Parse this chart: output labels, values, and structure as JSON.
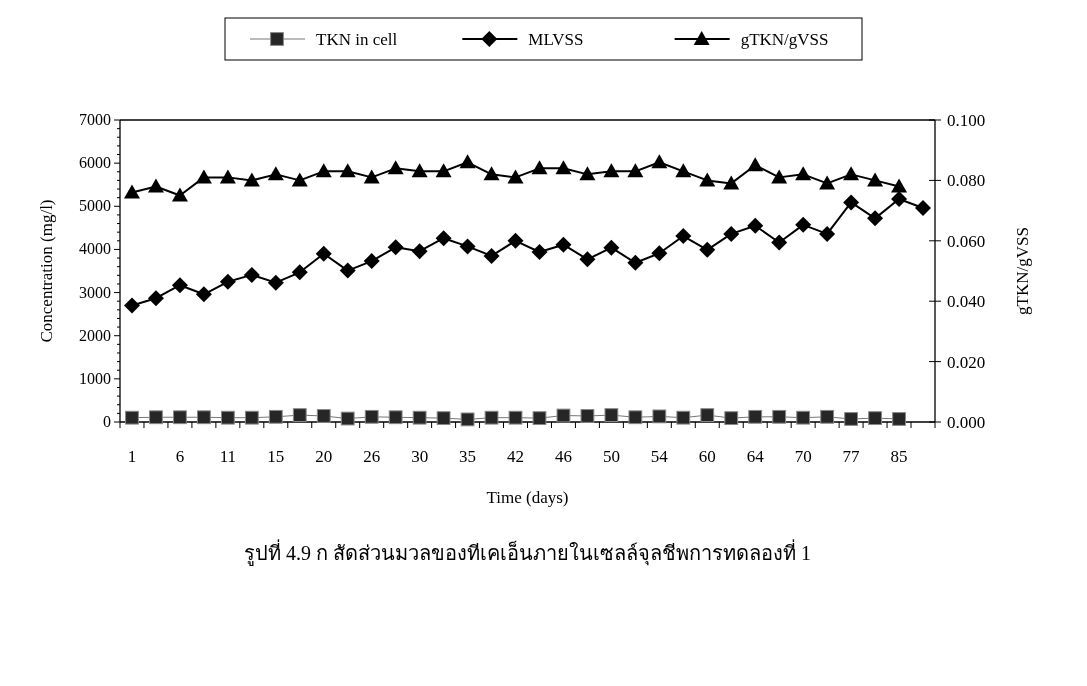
{
  "chart_data": {
    "type": "line",
    "xlabel": "Time (days)",
    "ylabel": "Concentration (mg/l)",
    "y2label": "gTKN/gVSS",
    "categories": [
      "1",
      null,
      "6",
      null,
      "11",
      null,
      "15",
      null,
      "20",
      null,
      "26",
      null,
      "30",
      null,
      "35",
      null,
      "42",
      null,
      "46",
      null,
      "50",
      null,
      "54",
      null,
      "60",
      null,
      "64",
      null,
      "70",
      null,
      "77",
      null,
      "85",
      null
    ],
    "ylim": [
      0,
      7000
    ],
    "yticks": [
      0,
      1000,
      2000,
      3000,
      4000,
      5000,
      6000,
      7000
    ],
    "y2lim": [
      0,
      0.1
    ],
    "y2ticks": [
      {
        "value": 0,
        "label": "0.000"
      },
      {
        "value": 0.02,
        "label": "0.020"
      },
      {
        "value": 0.04,
        "label": "0.040"
      },
      {
        "value": 0.06,
        "label": "0.060"
      },
      {
        "value": 0.08,
        "label": "0.080"
      },
      {
        "value": 0.1,
        "label": "0.100"
      }
    ],
    "legend": "top",
    "grid": false,
    "series": [
      {
        "name": "TKN in cell",
        "color": "#262626",
        "marker": "square",
        "values": [
          100,
          110,
          110,
          110,
          100,
          100,
          120,
          160,
          140,
          80,
          120,
          110,
          100,
          90,
          60,
          100,
          100,
          90,
          150,
          140,
          160,
          110,
          130,
          100,
          160,
          90,
          120,
          120,
          100,
          120,
          70,
          90,
          70,
          null
        ]
      },
      {
        "name": "MLVSS",
        "color": "#000000",
        "marker": "diamond",
        "values": [
          2700,
          2870,
          3170,
          2960,
          3250,
          3410,
          3230,
          3470,
          3900,
          3510,
          3730,
          4050,
          3960,
          4260,
          4070,
          3850,
          4200,
          3940,
          4110,
          3770,
          4040,
          3690,
          3910,
          4310,
          3990,
          4360,
          4550,
          4160,
          4570,
          4360,
          5090,
          4720,
          5170,
          4960
        ]
      },
      {
        "name": "gTKN/gVSS",
        "color": "#000000",
        "marker": "triangle",
        "axis": "y2",
        "values": [
          0.076,
          0.078,
          0.075,
          0.081,
          0.081,
          0.08,
          0.082,
          0.08,
          0.083,
          0.083,
          0.081,
          0.084,
          0.083,
          0.083,
          0.086,
          0.082,
          0.081,
          0.084,
          0.084,
          0.082,
          0.083,
          0.083,
          0.086,
          0.083,
          0.08,
          0.079,
          0.085,
          0.081,
          0.082,
          0.079,
          0.082,
          0.08,
          0.078,
          null
        ]
      }
    ],
    "annotations": [
      "รูปที่ 4.9 ก สัดส่วนมวลของทีเคเอ็นภายในเซลล์จุลชีพการทดลองที่ 1"
    ]
  }
}
